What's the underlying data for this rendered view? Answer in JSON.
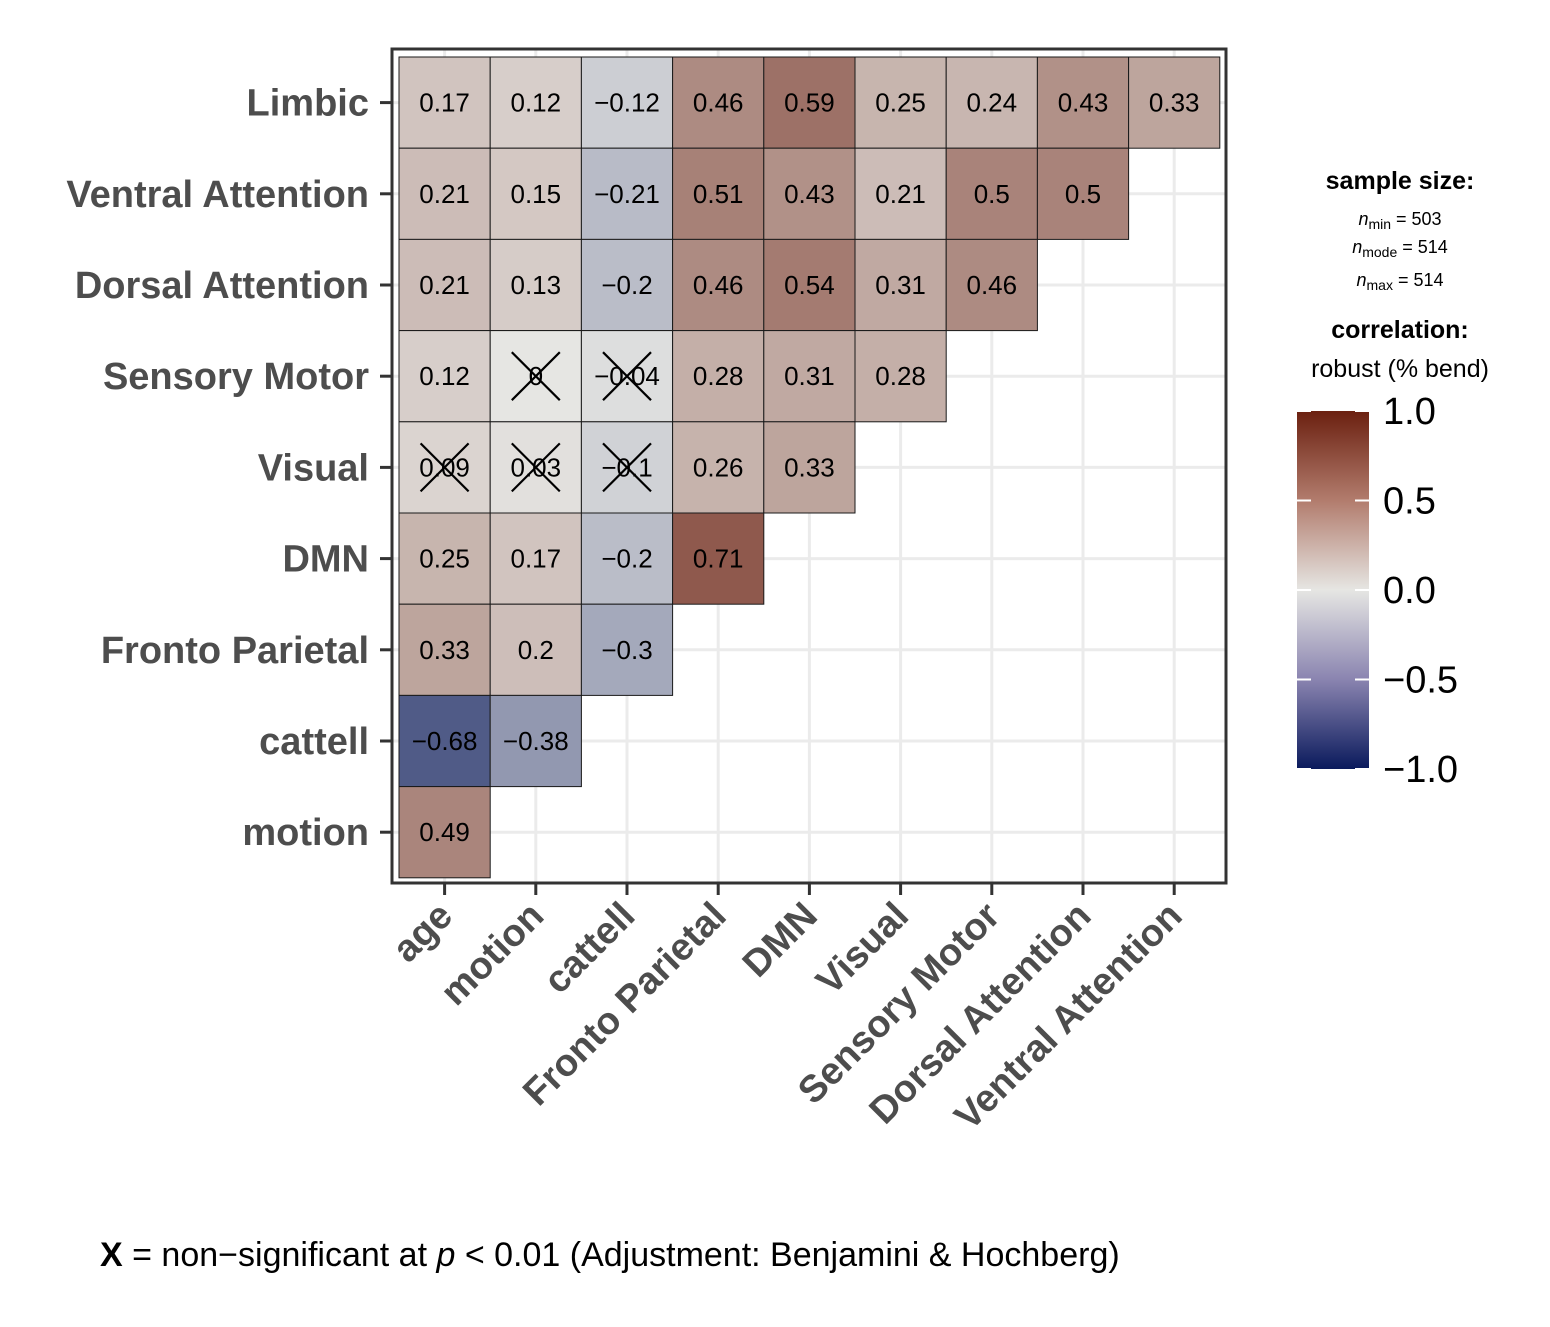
{
  "chart_data": {
    "type": "heatmap",
    "x_categories": [
      "age",
      "motion",
      "cattell",
      "Fronto Parietal",
      "DMN",
      "Visual",
      "Sensory Motor",
      "Dorsal Attention",
      "Ventral Attention"
    ],
    "y_categories": [
      "motion",
      "cattell",
      "Fronto Parietal",
      "DMN",
      "Visual",
      "Sensory Motor",
      "Dorsal Attention",
      "Ventral Attention",
      "Limbic"
    ],
    "cells": [
      {
        "x": "age",
        "y": "Limbic",
        "value": 0.17,
        "label": "0.17",
        "nonsignificant": false
      },
      {
        "x": "motion",
        "y": "Limbic",
        "value": 0.12,
        "label": "0.12",
        "nonsignificant": false
      },
      {
        "x": "cattell",
        "y": "Limbic",
        "value": -0.12,
        "label": "−0.12",
        "nonsignificant": false
      },
      {
        "x": "Fronto Parietal",
        "y": "Limbic",
        "value": 0.46,
        "label": "0.46",
        "nonsignificant": false
      },
      {
        "x": "DMN",
        "y": "Limbic",
        "value": 0.59,
        "label": "0.59",
        "nonsignificant": false
      },
      {
        "x": "Visual",
        "y": "Limbic",
        "value": 0.25,
        "label": "0.25",
        "nonsignificant": false
      },
      {
        "x": "Sensory Motor",
        "y": "Limbic",
        "value": 0.24,
        "label": "0.24",
        "nonsignificant": false
      },
      {
        "x": "Dorsal Attention",
        "y": "Limbic",
        "value": 0.43,
        "label": "0.43",
        "nonsignificant": false
      },
      {
        "x": "Ventral Attention",
        "y": "Limbic",
        "value": 0.33,
        "label": "0.33",
        "nonsignificant": false
      },
      {
        "x": "age",
        "y": "Ventral Attention",
        "value": 0.21,
        "label": "0.21",
        "nonsignificant": false
      },
      {
        "x": "motion",
        "y": "Ventral Attention",
        "value": 0.15,
        "label": "0.15",
        "nonsignificant": false
      },
      {
        "x": "cattell",
        "y": "Ventral Attention",
        "value": -0.21,
        "label": "−0.21",
        "nonsignificant": false
      },
      {
        "x": "Fronto Parietal",
        "y": "Ventral Attention",
        "value": 0.51,
        "label": "0.51",
        "nonsignificant": false
      },
      {
        "x": "DMN",
        "y": "Ventral Attention",
        "value": 0.43,
        "label": "0.43",
        "nonsignificant": false
      },
      {
        "x": "Visual",
        "y": "Ventral Attention",
        "value": 0.21,
        "label": "0.21",
        "nonsignificant": false
      },
      {
        "x": "Sensory Motor",
        "y": "Ventral Attention",
        "value": 0.5,
        "label": "0.5",
        "nonsignificant": false
      },
      {
        "x": "Dorsal Attention",
        "y": "Ventral Attention",
        "value": 0.5,
        "label": "0.5",
        "nonsignificant": false
      },
      {
        "x": "age",
        "y": "Dorsal Attention",
        "value": 0.21,
        "label": "0.21",
        "nonsignificant": false
      },
      {
        "x": "motion",
        "y": "Dorsal Attention",
        "value": 0.13,
        "label": "0.13",
        "nonsignificant": false
      },
      {
        "x": "cattell",
        "y": "Dorsal Attention",
        "value": -0.2,
        "label": "−0.2",
        "nonsignificant": false
      },
      {
        "x": "Fronto Parietal",
        "y": "Dorsal Attention",
        "value": 0.46,
        "label": "0.46",
        "nonsignificant": false
      },
      {
        "x": "DMN",
        "y": "Dorsal Attention",
        "value": 0.54,
        "label": "0.54",
        "nonsignificant": false
      },
      {
        "x": "Visual",
        "y": "Dorsal Attention",
        "value": 0.31,
        "label": "0.31",
        "nonsignificant": false
      },
      {
        "x": "Sensory Motor",
        "y": "Dorsal Attention",
        "value": 0.46,
        "label": "0.46",
        "nonsignificant": false
      },
      {
        "x": "age",
        "y": "Sensory Motor",
        "value": 0.12,
        "label": "0.12",
        "nonsignificant": false
      },
      {
        "x": "motion",
        "y": "Sensory Motor",
        "value": 0,
        "label": "0",
        "nonsignificant": true
      },
      {
        "x": "cattell",
        "y": "Sensory Motor",
        "value": -0.04,
        "label": "−0.04",
        "nonsignificant": true
      },
      {
        "x": "Fronto Parietal",
        "y": "Sensory Motor",
        "value": 0.28,
        "label": "0.28",
        "nonsignificant": false
      },
      {
        "x": "DMN",
        "y": "Sensory Motor",
        "value": 0.31,
        "label": "0.31",
        "nonsignificant": false
      },
      {
        "x": "Visual",
        "y": "Sensory Motor",
        "value": 0.28,
        "label": "0.28",
        "nonsignificant": false
      },
      {
        "x": "age",
        "y": "Visual",
        "value": 0.09,
        "label": "0.09",
        "nonsignificant": true
      },
      {
        "x": "motion",
        "y": "Visual",
        "value": 0.03,
        "label": "0.03",
        "nonsignificant": true
      },
      {
        "x": "cattell",
        "y": "Visual",
        "value": -0.1,
        "label": "−0.1",
        "nonsignificant": true
      },
      {
        "x": "Fronto Parietal",
        "y": "Visual",
        "value": 0.26,
        "label": "0.26",
        "nonsignificant": false
      },
      {
        "x": "DMN",
        "y": "Visual",
        "value": 0.33,
        "label": "0.33",
        "nonsignificant": false
      },
      {
        "x": "age",
        "y": "DMN",
        "value": 0.25,
        "label": "0.25",
        "nonsignificant": false
      },
      {
        "x": "motion",
        "y": "DMN",
        "value": 0.17,
        "label": "0.17",
        "nonsignificant": false
      },
      {
        "x": "cattell",
        "y": "DMN",
        "value": -0.2,
        "label": "−0.2",
        "nonsignificant": false
      },
      {
        "x": "Fronto Parietal",
        "y": "DMN",
        "value": 0.71,
        "label": "0.71",
        "nonsignificant": false
      },
      {
        "x": "age",
        "y": "Fronto Parietal",
        "value": 0.33,
        "label": "0.33",
        "nonsignificant": false
      },
      {
        "x": "motion",
        "y": "Fronto Parietal",
        "value": 0.2,
        "label": "0.2",
        "nonsignificant": false
      },
      {
        "x": "cattell",
        "y": "Fronto Parietal",
        "value": -0.3,
        "label": "−0.3",
        "nonsignificant": false
      },
      {
        "x": "age",
        "y": "cattell",
        "value": -0.68,
        "label": "−0.68",
        "nonsignificant": false
      },
      {
        "x": "motion",
        "y": "cattell",
        "value": -0.38,
        "label": "−0.38",
        "nonsignificant": false
      },
      {
        "x": "age",
        "y": "motion",
        "value": 0.49,
        "label": "0.49",
        "nonsignificant": false
      }
    ],
    "color_scale": {
      "low": "#0a1a5c",
      "mid": "#e6e6e3",
      "high": "#6b2010",
      "limits": [
        -1.0,
        1.0
      ],
      "ticks": [
        1.0,
        0.5,
        0.0,
        -0.5,
        -1.0
      ],
      "tick_labels": [
        "1.0",
        "0.5",
        "0.0",
        "−0.5",
        "−1.0"
      ]
    },
    "grid": true,
    "legend_position": "right"
  },
  "legend": {
    "sample_size_title": "sample size:",
    "n_items": [
      {
        "symbol": "n",
        "subscript": "min",
        "rest": " = 503"
      },
      {
        "symbol": "n",
        "subscript": "mode",
        "rest": " = 514"
      },
      {
        "symbol": "n",
        "subscript": "max",
        "rest": " = 514"
      }
    ],
    "correlation_title": "correlation:",
    "correlation_subtitle": "robust (% bend)"
  },
  "caption": {
    "marker": "X",
    "text_before_p": " = non−significant at ",
    "p_symbol": "p",
    "text_after_p": " < 0.01 (Adjustment: Benjamini & Hochberg)"
  }
}
